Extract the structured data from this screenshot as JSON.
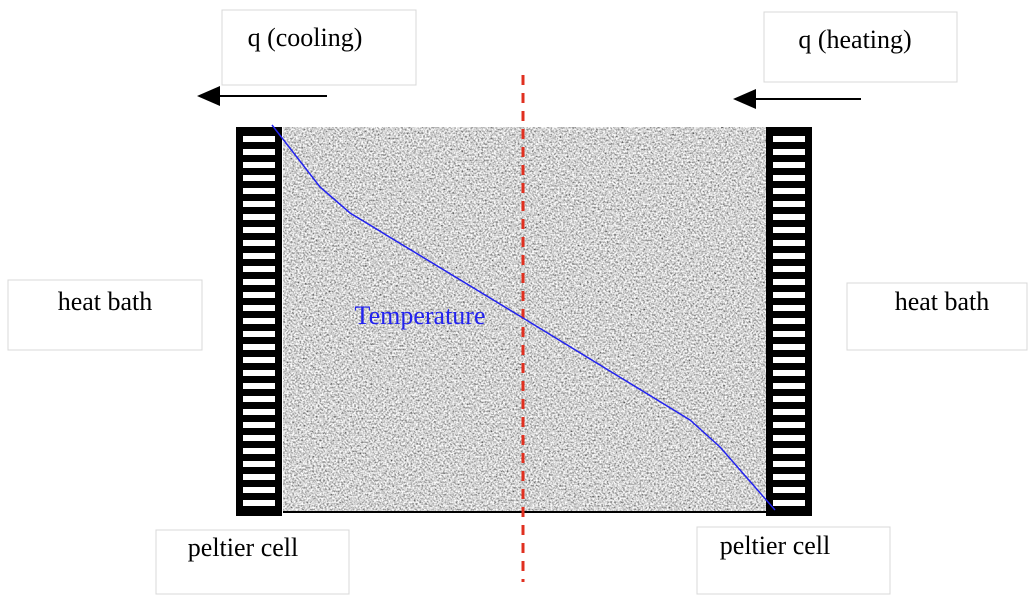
{
  "labels": {
    "cooling": "q (cooling)",
    "heating": "q (heating)",
    "heat_bath_left": "heat bath",
    "heat_bath_right": "heat bath",
    "peltier_left": "peltier cell",
    "peltier_right": "peltier cell",
    "temperature": "Temperature"
  }
}
